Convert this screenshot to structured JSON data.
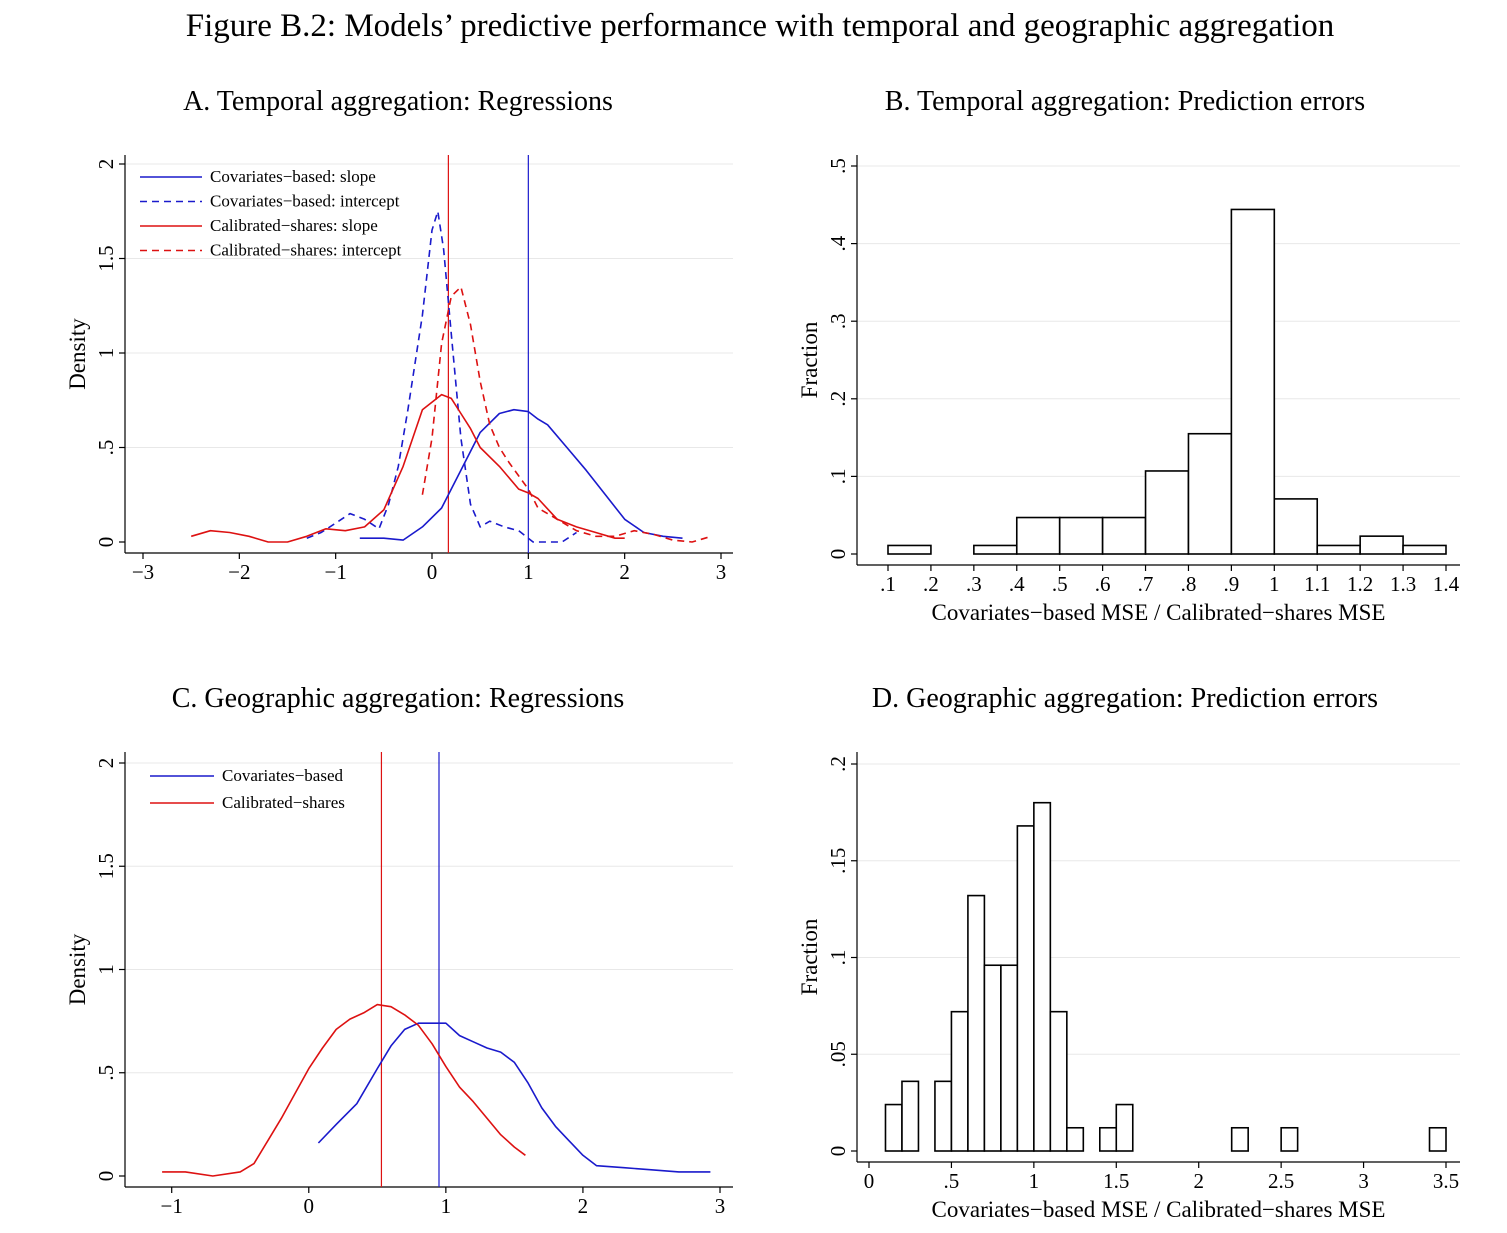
{
  "figure_title": "Figure B.2: Models’ predictive performance with temporal and geographic aggregation",
  "colors": {
    "blue": "#1a1acc",
    "red": "#dd1111",
    "grid": "#e8e8e8",
    "axis": "#000000"
  },
  "chart_data": [
    {
      "id": "A",
      "type": "line",
      "title": "A. Temporal aggregation: Regressions",
      "xlabel": "",
      "ylabel": "Density",
      "xlim": [
        -3,
        3
      ],
      "ylim": [
        0,
        2
      ],
      "xticks": [
        -3,
        -2,
        -1,
        0,
        1,
        2,
        3
      ],
      "xtick_labels": [
        "−3",
        "−2",
        "−1",
        "0",
        "1",
        "2",
        "3"
      ],
      "yticks": [
        0,
        0.5,
        1,
        1.5,
        2
      ],
      "ytick_labels": [
        "0",
        ".5",
        "1",
        "1.5",
        "2"
      ],
      "grid": true,
      "legend_position": "top-left",
      "vlines": [
        {
          "x": 0.17,
          "color": "red"
        },
        {
          "x": 1.0,
          "color": "blue"
        }
      ],
      "series": [
        {
          "name": "Covariates−based: slope",
          "color": "blue",
          "dash": "solid",
          "x": [
            -0.75,
            -0.5,
            -0.3,
            -0.1,
            0.1,
            0.3,
            0.5,
            0.7,
            0.85,
            1.0,
            1.1,
            1.2,
            1.4,
            1.6,
            1.8,
            2.0,
            2.2,
            2.4,
            2.6
          ],
          "y": [
            0.02,
            0.02,
            0.01,
            0.08,
            0.18,
            0.38,
            0.58,
            0.68,
            0.7,
            0.69,
            0.65,
            0.62,
            0.5,
            0.38,
            0.25,
            0.12,
            0.05,
            0.03,
            0.02
          ]
        },
        {
          "name": "Covariates−based: intercept",
          "color": "blue",
          "dash": "dashed",
          "x": [
            -1.3,
            -1.15,
            -1.0,
            -0.85,
            -0.7,
            -0.55,
            -0.45,
            -0.35,
            -0.25,
            -0.1,
            0.0,
            0.06,
            0.12,
            0.2,
            0.3,
            0.4,
            0.5,
            0.6,
            0.75,
            0.9,
            1.05,
            1.2,
            1.35,
            1.5
          ],
          "y": [
            0.02,
            0.05,
            0.1,
            0.15,
            0.12,
            0.07,
            0.2,
            0.4,
            0.7,
            1.2,
            1.65,
            1.75,
            1.55,
            1.1,
            0.55,
            0.2,
            0.08,
            0.11,
            0.08,
            0.06,
            0.0,
            0.0,
            0.0,
            0.05
          ]
        },
        {
          "name": "Calibrated−shares: slope",
          "color": "red",
          "dash": "solid",
          "x": [
            -2.5,
            -2.3,
            -2.1,
            -1.9,
            -1.7,
            -1.5,
            -1.3,
            -1.1,
            -0.9,
            -0.7,
            -0.5,
            -0.3,
            -0.1,
            0.1,
            0.2,
            0.3,
            0.4,
            0.5,
            0.7,
            0.9,
            1.0,
            1.1,
            1.3,
            1.5,
            1.7,
            1.9,
            2.0
          ],
          "y": [
            0.03,
            0.06,
            0.05,
            0.03,
            0.0,
            0.0,
            0.03,
            0.07,
            0.06,
            0.08,
            0.17,
            0.4,
            0.7,
            0.78,
            0.76,
            0.68,
            0.6,
            0.5,
            0.4,
            0.28,
            0.26,
            0.23,
            0.12,
            0.08,
            0.05,
            0.02,
            0.02
          ]
        },
        {
          "name": "Calibrated−shares: intercept",
          "color": "red",
          "dash": "dashed",
          "x": [
            -0.1,
            0.0,
            0.1,
            0.2,
            0.3,
            0.4,
            0.5,
            0.6,
            0.7,
            0.8,
            0.9,
            1.0,
            1.1,
            1.3,
            1.5,
            1.7,
            1.9,
            2.1,
            2.3,
            2.5,
            2.7,
            2.9
          ],
          "y": [
            0.25,
            0.55,
            1.05,
            1.3,
            1.35,
            1.15,
            0.85,
            0.62,
            0.5,
            0.42,
            0.35,
            0.28,
            0.18,
            0.12,
            0.06,
            0.03,
            0.03,
            0.06,
            0.04,
            0.01,
            0.0,
            0.03
          ]
        }
      ]
    },
    {
      "id": "B",
      "type": "bar",
      "title": "B. Temporal aggregation: Prediction errors",
      "xlabel": "Covariates−based MSE / Calibrated−shares MSE",
      "ylabel": "Fraction",
      "xlim": [
        0.1,
        1.4
      ],
      "ylim": [
        0,
        0.5
      ],
      "xticks": [
        0.1,
        0.2,
        0.3,
        0.4,
        0.5,
        0.6,
        0.7,
        0.8,
        0.9,
        1.0,
        1.1,
        1.2,
        1.3,
        1.4
      ],
      "xtick_labels": [
        ".1",
        ".2",
        ".3",
        ".4",
        ".5",
        ".6",
        ".7",
        ".8",
        ".9",
        "1",
        "1.1",
        "1.2",
        "1.3",
        "1.4"
      ],
      "yticks": [
        0,
        0.1,
        0.2,
        0.3,
        0.4,
        0.5
      ],
      "ytick_labels": [
        "0",
        ".1",
        ".2",
        ".3",
        ".4",
        ".5"
      ],
      "grid": true,
      "bins": [
        {
          "x0": 0.1,
          "x1": 0.2,
          "value": 0.011
        },
        {
          "x0": 0.3,
          "x1": 0.4,
          "value": 0.011
        },
        {
          "x0": 0.4,
          "x1": 0.5,
          "value": 0.047
        },
        {
          "x0": 0.5,
          "x1": 0.6,
          "value": 0.047
        },
        {
          "x0": 0.6,
          "x1": 0.7,
          "value": 0.047
        },
        {
          "x0": 0.7,
          "x1": 0.8,
          "value": 0.107
        },
        {
          "x0": 0.8,
          "x1": 0.9,
          "value": 0.155
        },
        {
          "x0": 0.9,
          "x1": 1.0,
          "value": 0.444
        },
        {
          "x0": 1.0,
          "x1": 1.1,
          "value": 0.071
        },
        {
          "x0": 1.1,
          "x1": 1.2,
          "value": 0.011
        },
        {
          "x0": 1.2,
          "x1": 1.3,
          "value": 0.023
        },
        {
          "x0": 1.3,
          "x1": 1.4,
          "value": 0.011
        }
      ]
    },
    {
      "id": "C",
      "type": "line",
      "title": "C. Geographic aggregation: Regressions",
      "xlabel": "",
      "ylabel": "Density",
      "xlim": [
        -1.1,
        3.0
      ],
      "ylim": [
        0,
        2
      ],
      "xticks": [
        -1,
        0,
        1,
        2,
        3
      ],
      "xtick_labels": [
        "−1",
        "0",
        "1",
        "2",
        "3"
      ],
      "yticks": [
        0,
        0.5,
        1,
        1.5,
        2
      ],
      "ytick_labels": [
        "0",
        ".5",
        "1",
        "1.5",
        "2"
      ],
      "grid": true,
      "legend_position": "top-left",
      "vlines": [
        {
          "x": 0.53,
          "color": "red"
        },
        {
          "x": 0.95,
          "color": "blue"
        }
      ],
      "series": [
        {
          "name": "Covariates−based",
          "color": "blue",
          "dash": "solid",
          "x": [
            0.07,
            0.2,
            0.35,
            0.5,
            0.6,
            0.7,
            0.8,
            0.9,
            1.0,
            1.1,
            1.2,
            1.3,
            1.4,
            1.5,
            1.6,
            1.7,
            1.8,
            1.9,
            2.0,
            2.1,
            2.3,
            2.5,
            2.7,
            2.93
          ],
          "y": [
            0.16,
            0.25,
            0.35,
            0.52,
            0.63,
            0.71,
            0.74,
            0.74,
            0.74,
            0.68,
            0.65,
            0.62,
            0.6,
            0.55,
            0.45,
            0.33,
            0.24,
            0.17,
            0.1,
            0.05,
            0.04,
            0.03,
            0.02,
            0.02
          ]
        },
        {
          "name": "Calibrated−shares",
          "color": "red",
          "dash": "solid",
          "x": [
            -1.07,
            -0.9,
            -0.7,
            -0.5,
            -0.4,
            -0.3,
            -0.2,
            -0.1,
            0.0,
            0.1,
            0.2,
            0.3,
            0.4,
            0.5,
            0.6,
            0.7,
            0.8,
            0.9,
            1.0,
            1.1,
            1.2,
            1.3,
            1.4,
            1.5,
            1.58
          ],
          "y": [
            0.02,
            0.02,
            0.0,
            0.02,
            0.06,
            0.17,
            0.28,
            0.4,
            0.52,
            0.62,
            0.71,
            0.76,
            0.79,
            0.83,
            0.82,
            0.78,
            0.73,
            0.64,
            0.53,
            0.43,
            0.36,
            0.28,
            0.2,
            0.14,
            0.1
          ]
        }
      ]
    },
    {
      "id": "D",
      "type": "bar",
      "title": "D. Geographic aggregation: Prediction errors",
      "xlabel": "Covariates−based MSE / Calibrated−shares MSE",
      "ylabel": "Fraction",
      "xlim": [
        0,
        3.5
      ],
      "ylim": [
        0,
        0.2
      ],
      "xticks": [
        0,
        0.5,
        1,
        1.5,
        2,
        2.5,
        3,
        3.5
      ],
      "xtick_labels": [
        "0",
        ".5",
        "1",
        "1.5",
        "2",
        "2.5",
        "3",
        "3.5"
      ],
      "yticks": [
        0,
        0.05,
        0.1,
        0.15,
        0.2
      ],
      "ytick_labels": [
        "0",
        ".05",
        ".1",
        ".15",
        ".2"
      ],
      "grid": true,
      "bins": [
        {
          "x0": 0.1,
          "x1": 0.2,
          "value": 0.024
        },
        {
          "x0": 0.2,
          "x1": 0.3,
          "value": 0.036
        },
        {
          "x0": 0.4,
          "x1": 0.5,
          "value": 0.036
        },
        {
          "x0": 0.5,
          "x1": 0.6,
          "value": 0.072
        },
        {
          "x0": 0.6,
          "x1": 0.7,
          "value": 0.132
        },
        {
          "x0": 0.7,
          "x1": 0.8,
          "value": 0.096
        },
        {
          "x0": 0.8,
          "x1": 0.9,
          "value": 0.096
        },
        {
          "x0": 0.9,
          "x1": 1.0,
          "value": 0.168
        },
        {
          "x0": 1.0,
          "x1": 1.1,
          "value": 0.18
        },
        {
          "x0": 1.1,
          "x1": 1.2,
          "value": 0.072
        },
        {
          "x0": 1.2,
          "x1": 1.3,
          "value": 0.012
        },
        {
          "x0": 1.4,
          "x1": 1.5,
          "value": 0.012
        },
        {
          "x0": 1.5,
          "x1": 1.6,
          "value": 0.024
        },
        {
          "x0": 2.2,
          "x1": 2.3,
          "value": 0.012
        },
        {
          "x0": 2.5,
          "x1": 2.6,
          "value": 0.012
        },
        {
          "x0": 3.4,
          "x1": 3.5,
          "value": 0.012
        }
      ]
    }
  ]
}
